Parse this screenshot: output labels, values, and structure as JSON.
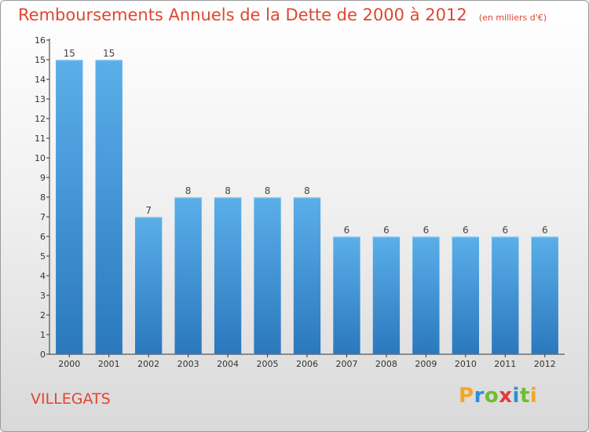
{
  "chart_data": {
    "type": "bar",
    "title": "Remboursements Annuels de la Dette de 2000 à 2012",
    "subtitle": "(en milliers d'€)",
    "categories": [
      "2000",
      "2001",
      "2002",
      "2003",
      "2004",
      "2005",
      "2006",
      "2007",
      "2008",
      "2009",
      "2010",
      "2011",
      "2012"
    ],
    "values": [
      15,
      15,
      7,
      8,
      8,
      8,
      8,
      6,
      6,
      6,
      6,
      6,
      6
    ],
    "ylim": [
      0,
      16
    ],
    "yticks": [
      0,
      1,
      2,
      3,
      4,
      5,
      6,
      7,
      8,
      9,
      10,
      11,
      12,
      13,
      14,
      15,
      16
    ],
    "grid": false,
    "bar_color": "#4ca3e3"
  },
  "commune": "VILLEGATS",
  "logo": {
    "text": "Proxiti",
    "letter_colors": [
      "#f5a623",
      "#2d8ed8",
      "#6cbf2c",
      "#e53a3a",
      "#2d8ed8",
      "#6cbf2c",
      "#f5a623"
    ]
  },
  "colors": {
    "accent": "#e0462f"
  }
}
